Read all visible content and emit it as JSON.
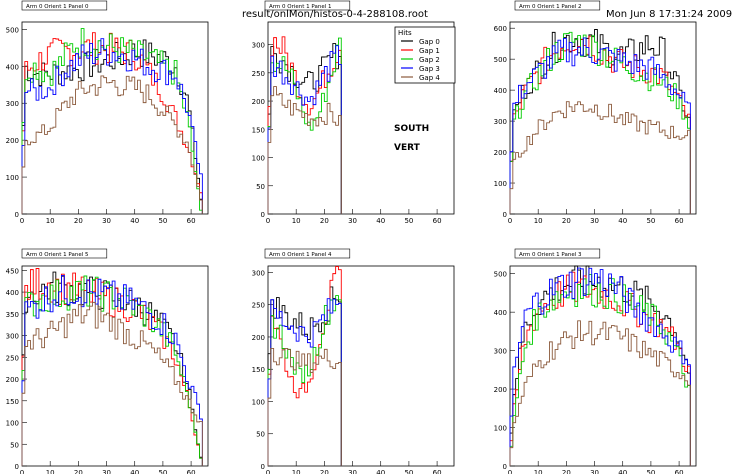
{
  "header": {
    "file_label": "result/onlMon/histos-0-4-288108.root",
    "timestamp": "Mon Jun  8 17:31:24 2009"
  },
  "annotations": {
    "south": "SOUTH",
    "vert": "VERT"
  },
  "legend": {
    "title": "Hits",
    "entries": [
      {
        "name": "Gap 0",
        "color": "#000000"
      },
      {
        "name": "Gap 1",
        "color": "#ff0000"
      },
      {
        "name": "Gap 2",
        "color": "#00cc00"
      },
      {
        "name": "Gap 3",
        "color": "#0000ff"
      },
      {
        "name": "Gap 4",
        "color": "#8b5a3c"
      }
    ]
  },
  "chart_data": [
    {
      "type": "line",
      "title": "Arm 0 Orient 1 Panel 0",
      "xlim": [
        0,
        66
      ],
      "ylim": [
        0,
        520
      ],
      "xticks": [
        0,
        10,
        20,
        30,
        40,
        50,
        60
      ],
      "yticks": [
        0,
        100,
        200,
        300,
        400,
        500
      ],
      "gap_levels": [
        [
          400,
          380,
          380,
          385,
          390,
          400,
          410,
          420,
          430,
          440,
          430,
          420,
          400,
          300,
          40
        ],
        [
          380,
          410,
          430,
          440,
          445,
          450,
          450,
          445,
          440,
          430,
          380,
          330,
          260,
          180,
          60
        ],
        [
          390,
          400,
          380,
          410,
          460,
          470,
          460,
          450,
          440,
          430,
          420,
          400,
          380,
          250,
          10
        ],
        [
          340,
          330,
          340,
          380,
          410,
          430,
          440,
          440,
          430,
          420,
          400,
          390,
          380,
          280,
          100
        ],
        [
          200,
          210,
          230,
          280,
          320,
          340,
          350,
          355,
          345,
          340,
          320,
          280,
          240,
          190,
          40
        ]
      ]
    },
    {
      "type": "line",
      "title": "Arm 0 Orient 1 Panel 1",
      "xlim": [
        0,
        66
      ],
      "ylim": [
        0,
        340
      ],
      "xticks": [
        0,
        10,
        20,
        30,
        40,
        50,
        60
      ],
      "yticks": [
        0,
        50,
        100,
        150,
        200,
        250,
        300
      ],
      "gap_levels": [
        [
          290,
          280,
          260,
          240,
          230,
          245,
          270,
          290,
          0,
          0,
          0,
          0,
          0,
          0,
          0
        ],
        [
          310,
          300,
          270,
          220,
          190,
          220,
          260,
          300,
          0,
          0,
          0,
          0,
          0,
          0,
          0
        ],
        [
          280,
          270,
          250,
          200,
          150,
          180,
          240,
          300,
          0,
          0,
          0,
          0,
          0,
          0,
          0
        ],
        [
          270,
          260,
          240,
          220,
          200,
          230,
          260,
          280,
          0,
          0,
          0,
          0,
          0,
          0,
          0
        ],
        [
          220,
          200,
          190,
          180,
          170,
          170,
          180,
          160,
          0,
          0,
          0,
          0,
          0,
          0,
          0
        ]
      ]
    },
    {
      "type": "line",
      "title": "Arm 0 Orient 1 Panel 2",
      "xlim": [
        0,
        66
      ],
      "ylim": [
        0,
        620
      ],
      "xticks": [
        0,
        10,
        20,
        30,
        40,
        50,
        60
      ],
      "yticks": [
        0,
        100,
        200,
        300,
        400,
        500,
        600
      ],
      "gap_levels": [
        [
          300,
          400,
          460,
          520,
          560,
          570,
          560,
          540,
          520,
          510,
          530,
          550,
          520,
          420,
          300
        ],
        [
          280,
          390,
          450,
          510,
          550,
          570,
          560,
          530,
          500,
          480,
          470,
          460,
          440,
          380,
          300
        ],
        [
          270,
          380,
          440,
          500,
          540,
          560,
          550,
          530,
          500,
          480,
          460,
          440,
          420,
          380,
          300
        ],
        [
          330,
          410,
          450,
          490,
          520,
          530,
          530,
          520,
          500,
          490,
          480,
          470,
          440,
          400,
          330
        ],
        [
          150,
          220,
          270,
          310,
          340,
          350,
          350,
          340,
          320,
          300,
          290,
          280,
          270,
          260,
          250
        ]
      ]
    },
    {
      "type": "line",
      "title": "Arm 0 Orient 1 Panel 5",
      "xlim": [
        0,
        66
      ],
      "ylim": [
        0,
        460
      ],
      "xticks": [
        0,
        10,
        20,
        30,
        40,
        50,
        60
      ],
      "yticks": [
        0,
        50,
        100,
        150,
        200,
        250,
        300,
        350,
        400,
        450
      ],
      "gap_levels": [
        [
          390,
          400,
          410,
          410,
          405,
          400,
          395,
          390,
          380,
          370,
          350,
          320,
          280,
          180,
          20
        ],
        [
          400,
          420,
          420,
          410,
          405,
          400,
          390,
          380,
          370,
          360,
          330,
          300,
          250,
          150,
          20
        ],
        [
          360,
          380,
          390,
          395,
          400,
          400,
          395,
          390,
          380,
          360,
          340,
          310,
          260,
          160,
          20
        ],
        [
          350,
          370,
          390,
          400,
          405,
          400,
          395,
          390,
          380,
          370,
          350,
          330,
          290,
          200,
          120
        ],
        [
          280,
          290,
          300,
          320,
          340,
          350,
          345,
          330,
          310,
          290,
          270,
          240,
          200,
          150,
          100
        ]
      ]
    },
    {
      "type": "line",
      "title": "Arm 0 Orient 1 Panel 4",
      "xlim": [
        0,
        66
      ],
      "ylim": [
        0,
        310
      ],
      "xticks": [
        0,
        10,
        20,
        30,
        40,
        50,
        60
      ],
      "yticks": [
        0,
        50,
        100,
        150,
        200,
        250,
        300
      ],
      "gap_levels": [
        [
          270,
          240,
          230,
          220,
          210,
          230,
          250,
          270,
          0,
          0,
          0,
          0,
          0,
          0,
          0
        ],
        [
          250,
          200,
          140,
          110,
          130,
          200,
          260,
          290,
          0,
          0,
          0,
          0,
          0,
          0,
          0
        ],
        [
          230,
          210,
          170,
          140,
          150,
          200,
          250,
          270,
          0,
          0,
          0,
          0,
          0,
          0,
          0
        ],
        [
          240,
          230,
          220,
          210,
          200,
          220,
          240,
          260,
          0,
          0,
          0,
          0,
          0,
          0,
          0
        ],
        [
          190,
          170,
          170,
          160,
          160,
          165,
          170,
          160,
          0,
          0,
          0,
          0,
          0,
          0,
          0
        ]
      ]
    },
    {
      "type": "line",
      "title": "Arm 0 Orient 1 Panel 3",
      "xlim": [
        0,
        66
      ],
      "ylim": [
        0,
        520
      ],
      "xticks": [
        0,
        10,
        20,
        30,
        40,
        50,
        60
      ],
      "yticks": [
        0,
        100,
        200,
        300,
        400,
        500
      ],
      "gap_levels": [
        [
          150,
          350,
          420,
          450,
          470,
          480,
          480,
          480,
          470,
          460,
          440,
          420,
          400,
          350,
          250
        ],
        [
          100,
          320,
          400,
          430,
          450,
          460,
          460,
          450,
          440,
          420,
          400,
          380,
          360,
          320,
          250
        ],
        [
          80,
          300,
          390,
          430,
          450,
          460,
          460,
          455,
          445,
          430,
          410,
          390,
          360,
          300,
          200
        ],
        [
          200,
          380,
          430,
          450,
          470,
          480,
          490,
          485,
          470,
          440,
          400,
          380,
          350,
          310,
          280
        ],
        [
          80,
          200,
          260,
          300,
          320,
          340,
          350,
          345,
          340,
          330,
          310,
          290,
          270,
          250,
          230
        ]
      ]
    }
  ]
}
